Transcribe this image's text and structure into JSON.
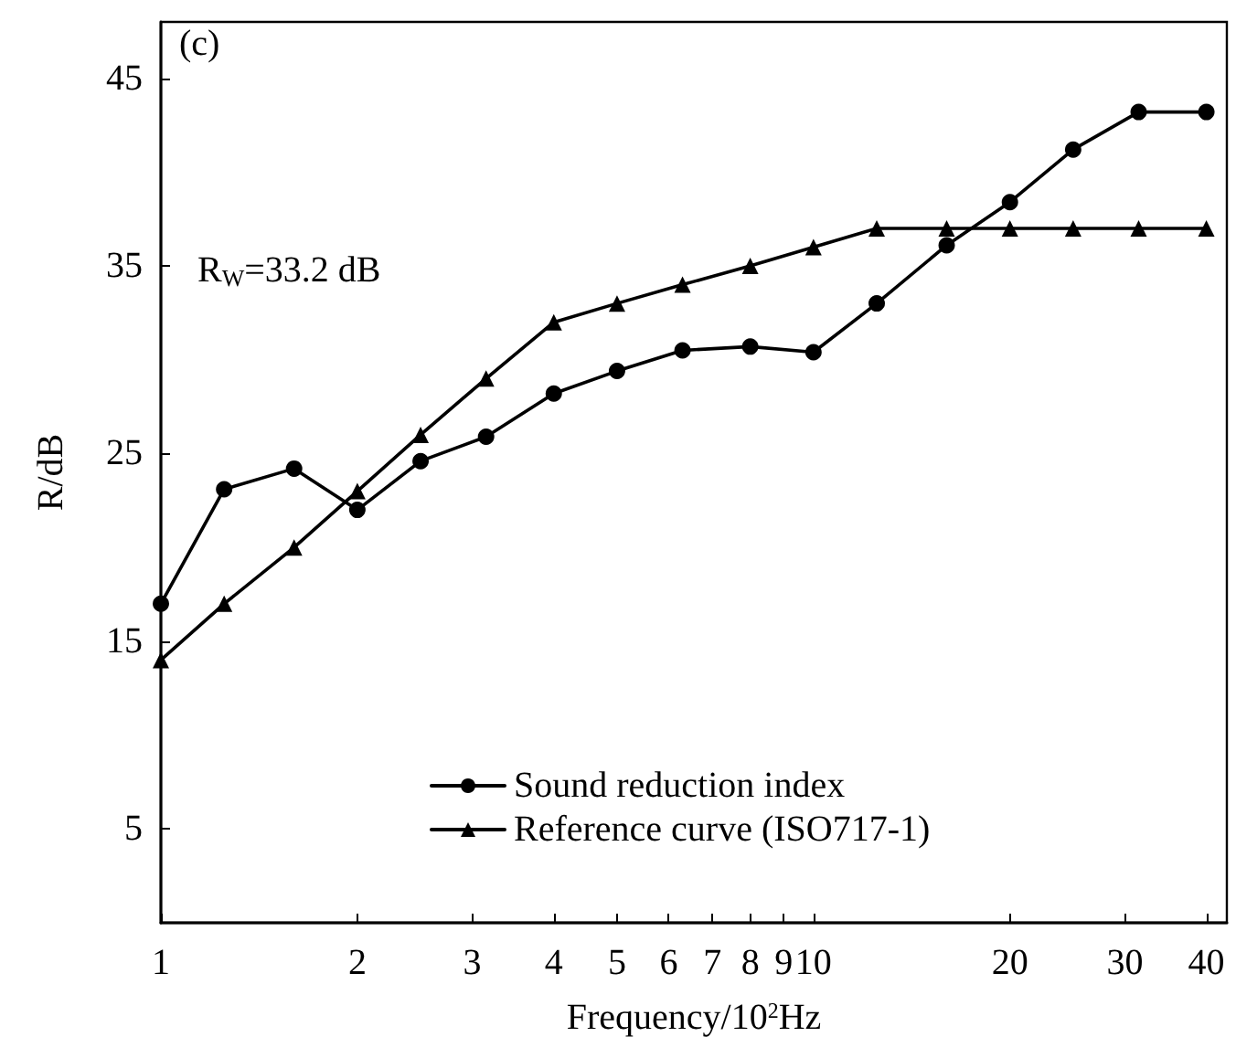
{
  "chart_data": {
    "type": "line",
    "xlabel": "Frequency/10$^{2}$Hz",
    "ylabel": "R/dB",
    "annotations": [
      "(c)",
      "R$_{W}$=33.2 dB"
    ],
    "x": [
      1,
      1.25,
      1.6,
      2,
      2.5,
      3.15,
      4,
      5,
      6.3,
      8,
      10,
      12.5,
      16,
      20,
      25,
      31.5,
      40
    ],
    "series": [
      {
        "name": "Sound reduction index",
        "color": "#000000",
        "marker": "circle",
        "values": [
          17.0,
          23.1,
          24.2,
          22.0,
          24.6,
          25.9,
          28.2,
          29.4,
          30.5,
          30.7,
          30.4,
          33.0,
          36.1,
          38.4,
          41.2,
          43.2,
          43.2
        ]
      },
      {
        "name": "Reference curve (ISO717-1)",
        "color": "#000000",
        "marker": "triangle",
        "values": [
          14,
          17,
          20,
          23,
          26,
          29,
          32,
          33,
          34,
          35,
          36,
          37,
          37,
          37,
          37,
          37,
          37
        ]
      }
    ],
    "log": "x",
    "xlim": [
      1,
      43
    ],
    "xticks": [
      1,
      2,
      3,
      4,
      5,
      6,
      7,
      8,
      9,
      10,
      20,
      30,
      40
    ],
    "ylim": [
      0,
      48
    ],
    "yticks": [
      5,
      15,
      25,
      35,
      45
    ],
    "grid": false,
    "legend": "bottom",
    "line_style": "solid"
  }
}
